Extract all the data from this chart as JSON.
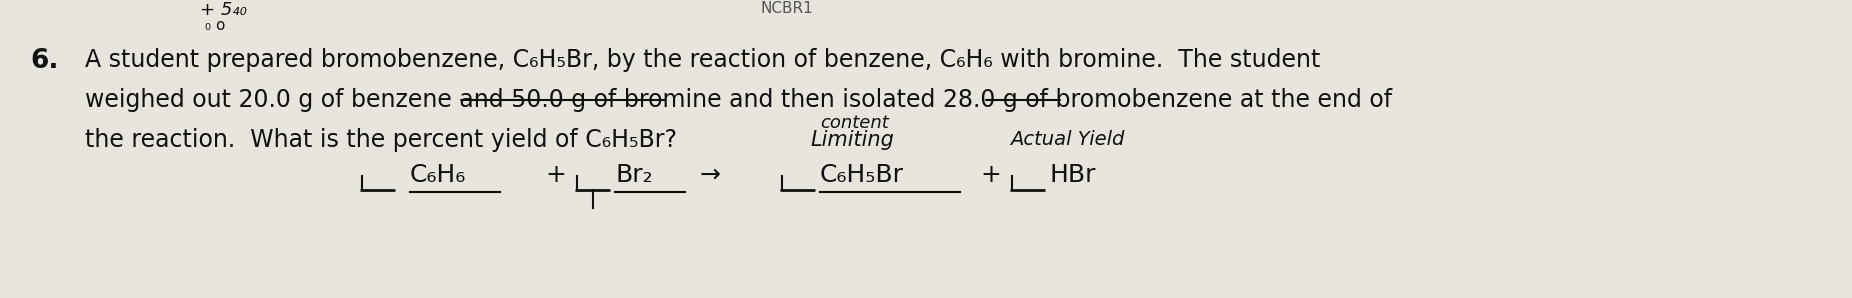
{
  "background_color": "#e8e5de",
  "font_size_main": 17,
  "font_size_small": 12,
  "font_size_eq": 18,
  "text_color": "#111111",
  "line1": "A student prepared bromobenzene, C₆H₅Br, by the reaction of benzene, C₆H₆ with bromine.  The student",
  "line2": "weighed out 20.0 g of benzene and 50.0 g of bromine and then isolated 28.0 g of bromobenzene at the end of",
  "line3": "the reaction.  What is the percent yield of C₆H₅Br?",
  "limiting_text": "Limiting",
  "content_text": "content",
  "actual_yield_text": "Actual Yield",
  "equation": "C₆H₆  +     Br₂  →     C₆H₅Br  +     HBr",
  "number": "6.",
  "top_annotation": "+ 5₄₀",
  "top_annotation2": "₀ o"
}
